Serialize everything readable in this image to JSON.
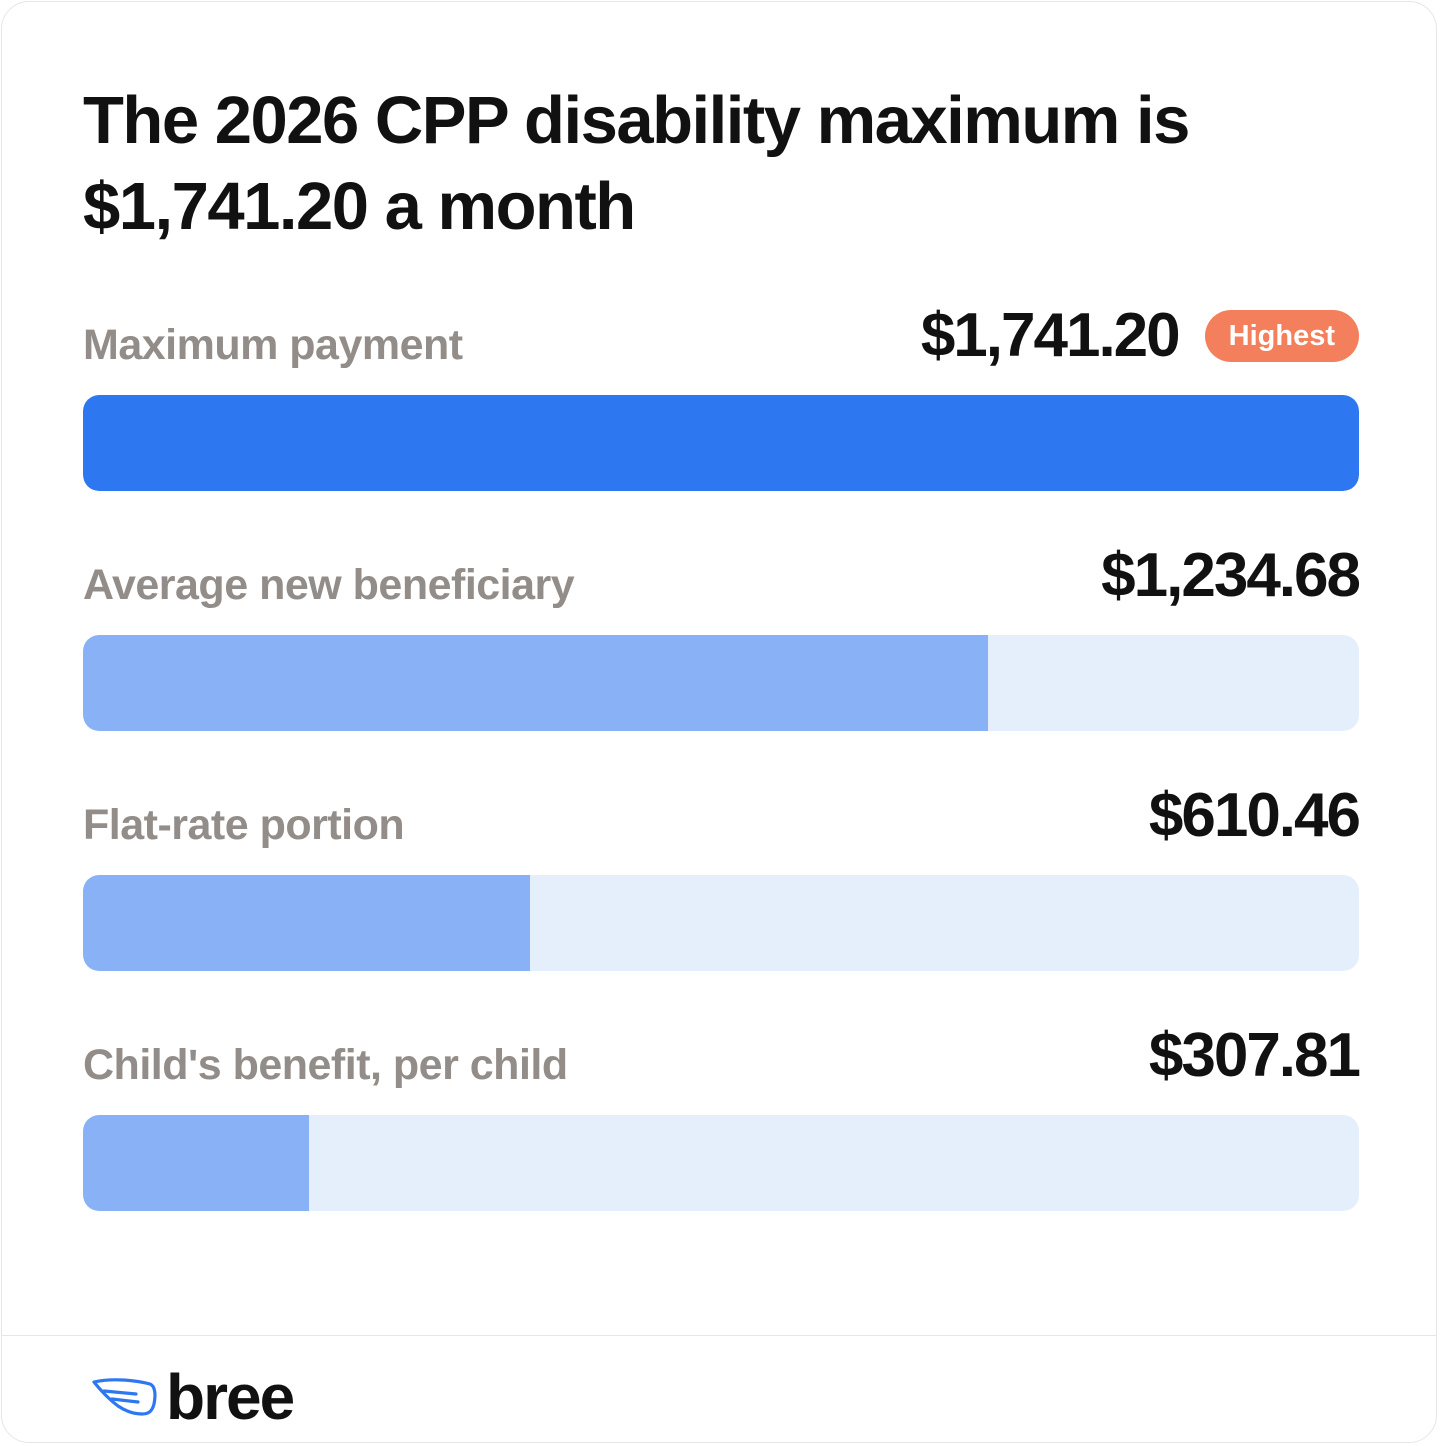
{
  "title": "The 2026 CPP disability maximum is $1,741.20 a month",
  "colors": {
    "highest_fill": "#2d77f1",
    "fill": "#89b1f5",
    "track": "#e5effc",
    "badge": "#f47f5c",
    "label": "#938d89",
    "value": "#111111"
  },
  "chart_data": {
    "type": "bar",
    "orientation": "horizontal",
    "title": "The 2026 CPP disability maximum is $1,741.20 a month",
    "categories": [
      "Maximum payment",
      "Average new beneficiary",
      "Flat-rate portion",
      "Child's benefit, per child"
    ],
    "values": [
      1741.2,
      1234.68,
      610.46,
      307.81
    ],
    "value_labels": [
      "$1,741.20",
      "$1,234.68",
      "$610.46",
      "$307.81"
    ],
    "xlim": [
      0,
      1741.2
    ],
    "grid": false,
    "badges": [
      {
        "category": "Maximum payment",
        "text": "Highest"
      }
    ]
  },
  "logo": {
    "icon": "wing-icon",
    "wordmark": "bree"
  }
}
